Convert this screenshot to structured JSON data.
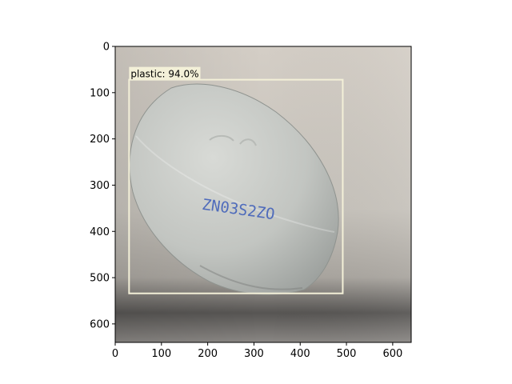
{
  "x_axis": {
    "ticks": [
      {
        "value": 0,
        "label": "0"
      },
      {
        "value": 100,
        "label": "100"
      },
      {
        "value": 200,
        "label": "200"
      },
      {
        "value": 300,
        "label": "300"
      },
      {
        "value": 400,
        "label": "400"
      },
      {
        "value": 500,
        "label": "500"
      },
      {
        "value": 600,
        "label": "600"
      }
    ],
    "range": [
      0,
      640
    ]
  },
  "y_axis": {
    "ticks": [
      {
        "value": 0,
        "label": "0"
      },
      {
        "value": 100,
        "label": "100"
      },
      {
        "value": 200,
        "label": "200"
      },
      {
        "value": 300,
        "label": "300"
      },
      {
        "value": 400,
        "label": "400"
      },
      {
        "value": 500,
        "label": "500"
      },
      {
        "value": 600,
        "label": "600"
      }
    ],
    "range": [
      0,
      640
    ],
    "inverted": true
  },
  "detection": {
    "label": "plastic: 94.0%",
    "class": "plastic",
    "confidence": 94.0,
    "box": {
      "xmin": 30,
      "ymin": 72,
      "xmax": 492,
      "ymax": 534
    },
    "box_color": "#f3f0d8"
  },
  "photo": {
    "subject": "white plastic bottle cap",
    "print_text": "ZN03S2ZO",
    "print_color": "#3a5bb8"
  }
}
